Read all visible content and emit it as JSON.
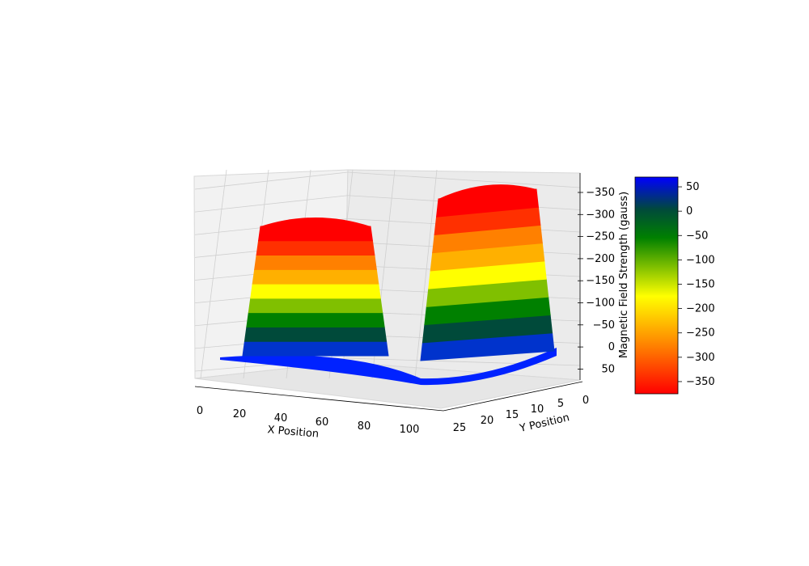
{
  "chart_data": {
    "type": "surface3d",
    "title": "",
    "xlabel": "X Position",
    "ylabel": "Y Position",
    "zlabel": "",
    "x_ticks": [
      "0",
      "20",
      "40",
      "60",
      "80",
      "100"
    ],
    "y_ticks": [
      "0",
      "5",
      "10",
      "15",
      "20",
      "25"
    ],
    "z_ticks": [
      "−350",
      "−300",
      "−250",
      "−200",
      "−150",
      "−100",
      "−50",
      "0",
      "50"
    ],
    "xlim": [
      0,
      110
    ],
    "ylim": [
      0,
      26
    ],
    "zlim": [
      -380,
      60
    ],
    "z_axis_inverted": true,
    "grid": true,
    "colorbar": {
      "label": "Magnetic Field Strength (gauss)",
      "ticks": [
        "50",
        "0",
        "−50",
        "−100",
        "−150",
        "−200",
        "−250",
        "−300",
        "−350"
      ],
      "range": [
        -375,
        70
      ],
      "colors": [
        "#ff0000",
        "#ff8000",
        "#ffff00",
        "#008000",
        "#0000ff"
      ]
    },
    "surface": {
      "description_peaks": [
        {
          "region": "left lobe",
          "x_range": [
            20,
            55
          ],
          "max_value": -330
        },
        {
          "region": "right lobe",
          "x_range": [
            75,
            105
          ],
          "max_value": -370
        }
      ],
      "baseline_value": 0,
      "trough_value": 60
    }
  }
}
